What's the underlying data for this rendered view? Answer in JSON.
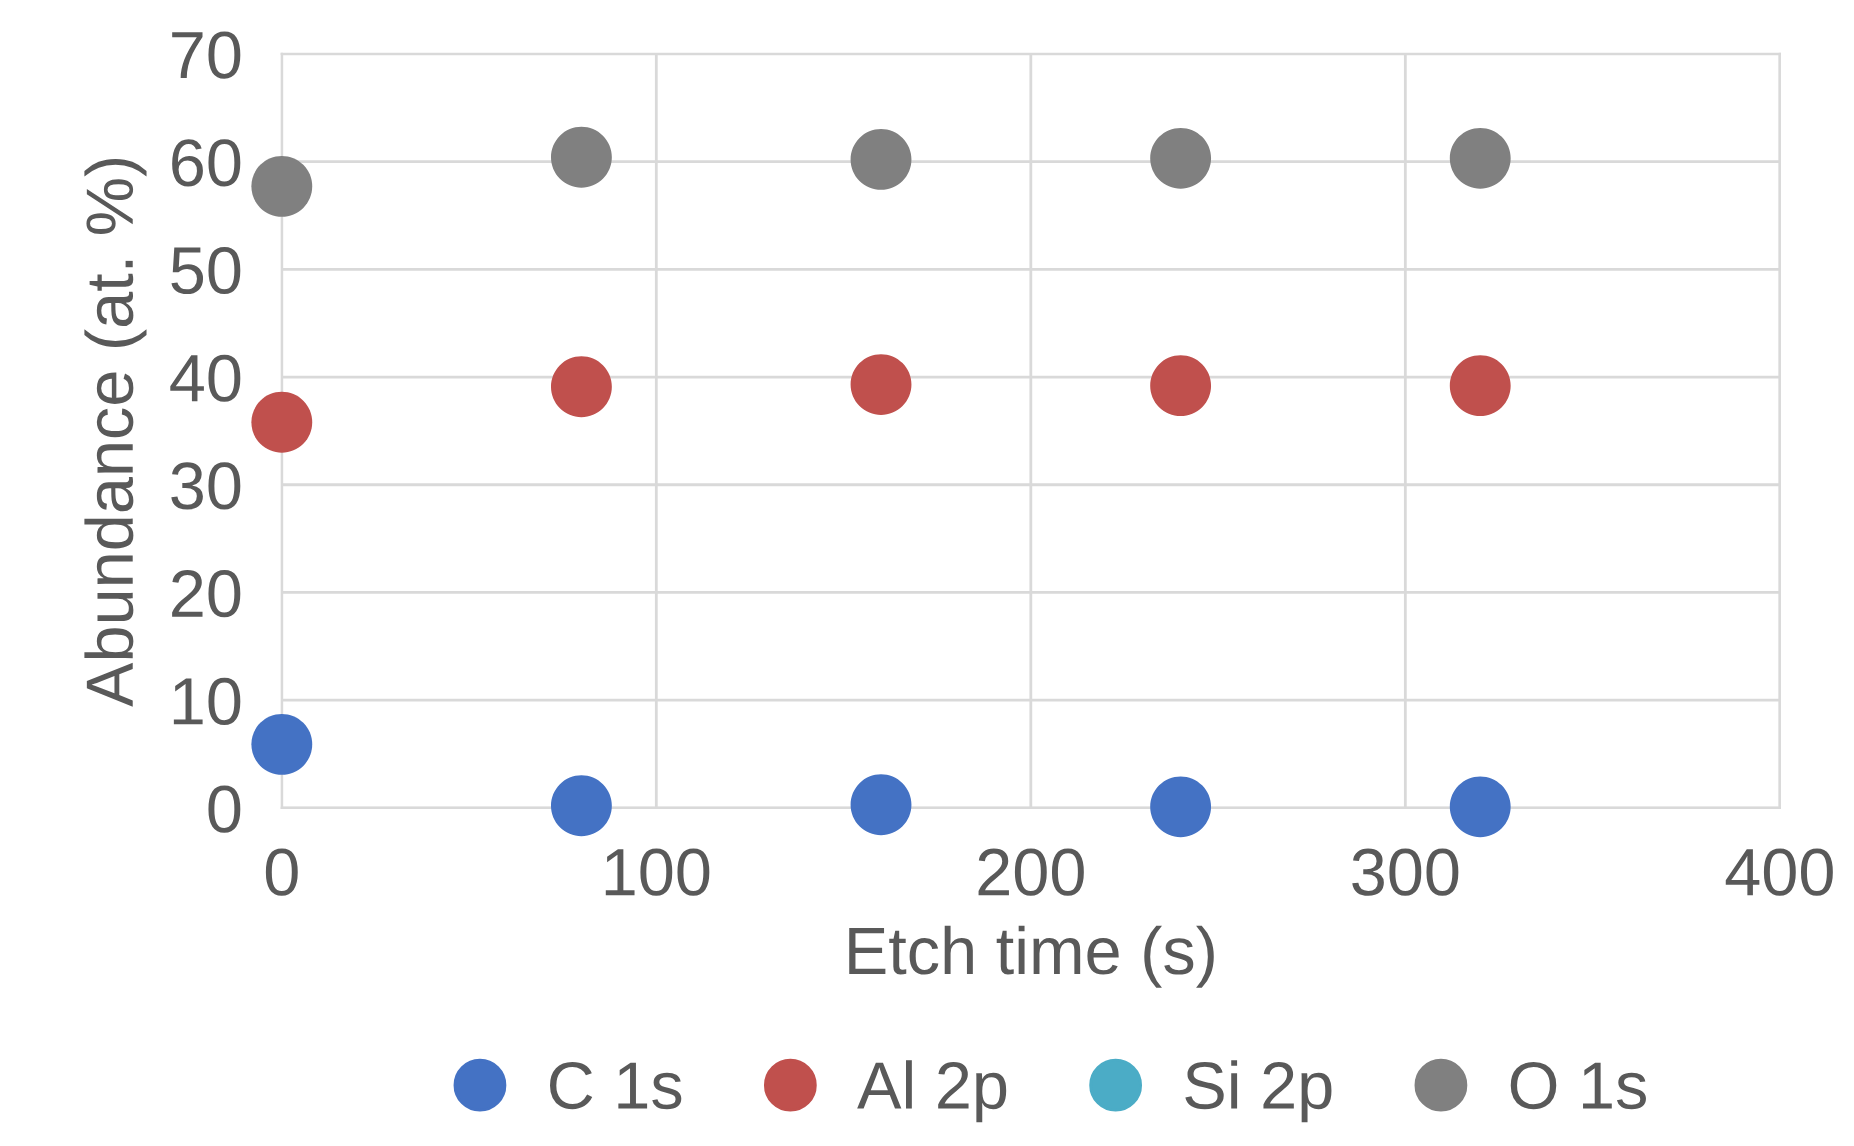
{
  "chart_data": {
    "type": "scatter",
    "xlabel": "Etch time (s)",
    "ylabel": "Abundance (at. %)",
    "x": [
      0,
      80,
      160,
      240,
      320
    ],
    "series": [
      {
        "name": "C 1s",
        "color": "#4472c4",
        "values": [
          5.9,
          0.2,
          0.3,
          0.1,
          0.1
        ]
      },
      {
        "name": "Al 2p",
        "color": "#c0504d",
        "values": [
          35.8,
          39.1,
          39.3,
          39.2,
          39.2
        ]
      },
      {
        "name": "Si 2p",
        "color": "#4bacc6",
        "values": [
          null,
          null,
          null,
          null,
          null
        ]
      },
      {
        "name": "O 1s",
        "color": "#808080",
        "values": [
          57.7,
          60.4,
          60.2,
          60.3,
          60.3
        ]
      }
    ],
    "xlim": [
      0,
      400
    ],
    "xticks": [
      0,
      100,
      200,
      300,
      400
    ],
    "ylim": [
      0,
      70
    ],
    "yticks": [
      0,
      10,
      20,
      30,
      40,
      50,
      60,
      70
    ],
    "grid": true,
    "legend": "bottom",
    "marker": "circle"
  }
}
